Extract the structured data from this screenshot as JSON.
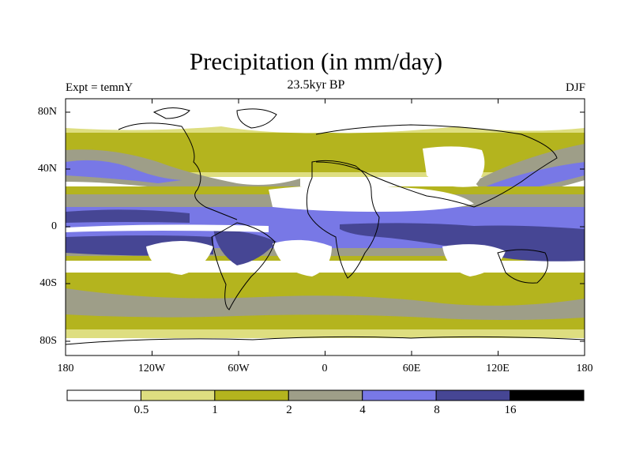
{
  "title": "Precipitation (in mm/day)",
  "subtitle": "23.5kyr BP",
  "left_label": "Expt = temnY",
  "right_label": "DJF",
  "map": {
    "lat_ticks": [
      "80N",
      "40N",
      "0",
      "40S",
      "80S"
    ],
    "lon_ticks": [
      "180",
      "120W",
      "60W",
      "0",
      "60E",
      "120E",
      "180"
    ]
  },
  "colorbar": {
    "boundaries": [
      "0.5",
      "1",
      "2",
      "4",
      "8",
      "16"
    ],
    "colors": [
      "#ffffff",
      "#dede80",
      "#b4b41e",
      "#9e9e88",
      "#7878e6",
      "#464694",
      "#000000"
    ]
  },
  "colors": {
    "c_white": "#ffffff",
    "c_light_yellow": "#dede80",
    "c_olive": "#b4b41e",
    "c_gray": "#9e9e88",
    "c_blue": "#7878e6",
    "c_dark_blue": "#464694",
    "c_black": "#000000",
    "coast": "#000000"
  }
}
